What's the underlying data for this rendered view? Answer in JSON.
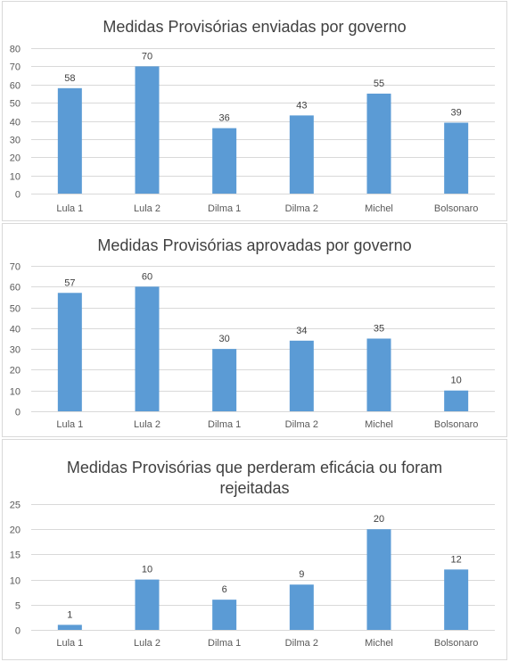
{
  "colors": {
    "bar": "#5b9bd5",
    "grid": "#d9d9d9",
    "text": "#595959",
    "label": "#404040"
  },
  "chart_data": [
    {
      "type": "bar",
      "title": "Medidas Provisórias enviadas por governo",
      "categories": [
        "Lula 1",
        "Lula 2",
        "Dilma 1",
        "Dilma 2",
        "Michel",
        "Bolsonaro"
      ],
      "values": [
        58,
        70,
        36,
        43,
        55,
        39
      ],
      "data_labels": [
        "58",
        "70",
        "36",
        "43",
        "55",
        "39"
      ],
      "ylim": [
        0,
        80
      ],
      "yticks": [
        "0",
        "10",
        "20",
        "30",
        "40",
        "50",
        "60",
        "70",
        "80"
      ],
      "grid": true,
      "legend": "none"
    },
    {
      "type": "bar",
      "title": "Medidas Provisórias aprovadas por governo",
      "categories": [
        "Lula 1",
        "Lula 2",
        "Dilma 1",
        "Dilma 2",
        "Michel",
        "Bolsonaro"
      ],
      "values": [
        57,
        60,
        30,
        34,
        35,
        10
      ],
      "data_labels": [
        "57",
        "60",
        "30",
        "34",
        "35",
        "10"
      ],
      "ylim": [
        0,
        70
      ],
      "yticks": [
        "0",
        "10",
        "20",
        "30",
        "40",
        "50",
        "60",
        "70"
      ],
      "grid": true,
      "legend": "none"
    },
    {
      "type": "bar",
      "title": "Medidas Provisórias que perderam eficácia ou foram rejeitadas",
      "categories": [
        "Lula 1",
        "Lula 2",
        "Dilma 1",
        "Dilma 2",
        "Michel",
        "Bolsonaro"
      ],
      "values": [
        1,
        10,
        6,
        9,
        20,
        12
      ],
      "data_labels": [
        "1",
        "10",
        "6",
        "9",
        "20",
        "12"
      ],
      "ylim": [
        0,
        25
      ],
      "yticks": [
        "0",
        "5",
        "10",
        "15",
        "20",
        "25"
      ],
      "grid": true,
      "legend": "none"
    }
  ]
}
